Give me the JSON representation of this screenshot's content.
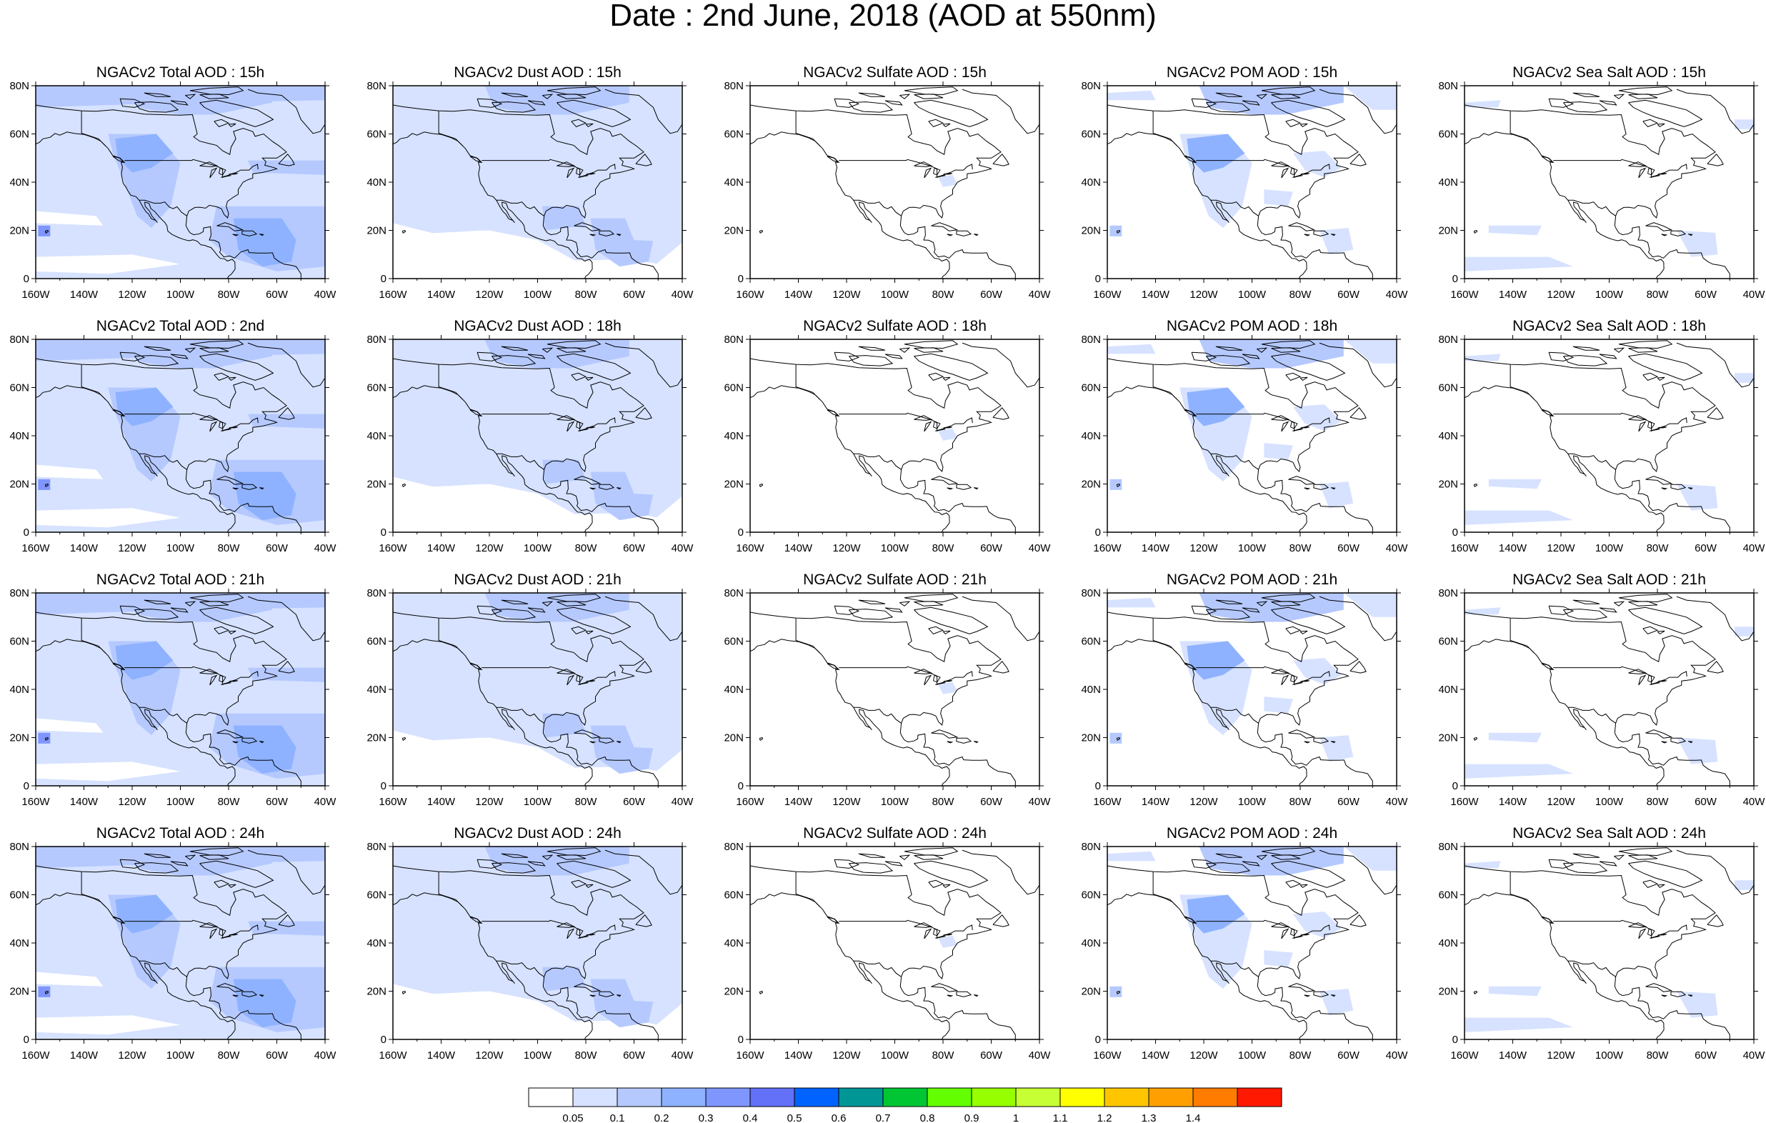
{
  "title": "Date : 2nd June, 2018 (AOD at 550nm)",
  "lat_labels": [
    "80N",
    "60N",
    "40N",
    "20N",
    "0"
  ],
  "lon_labels": [
    "160W",
    "140W",
    "120W",
    "100W",
    "80W",
    "60W",
    "40W"
  ],
  "colorbar": {
    "colors": [
      "#ffffff",
      "#d6e2ff",
      "#b5c9ff",
      "#8eb2ff",
      "#7f96ff",
      "#6370f8",
      "#0063ff",
      "#009696",
      "#00c633",
      "#63ff00",
      "#96ff00",
      "#c6ff33",
      "#ffff00",
      "#ffc600",
      "#ffa000",
      "#ff7c00",
      "#ff1900"
    ],
    "labels": [
      "0.05",
      "0.1",
      "0.2",
      "0.3",
      "0.4",
      "0.5",
      "0.6",
      "0.7",
      "0.8",
      "0.9",
      "1",
      "1.1",
      "1.2",
      "1.3",
      "1.4"
    ]
  },
  "rows": [
    {
      "panels": [
        {
          "title": "NGACv2 Total AOD : 15h",
          "kind": "total"
        },
        {
          "title": "NGACv2 Dust AOD : 15h",
          "kind": "dust"
        },
        {
          "title": "NGACv2 Sulfate AOD : 15h",
          "kind": "sulfate"
        },
        {
          "title": "NGACv2 POM AOD : 15h",
          "kind": "pom"
        },
        {
          "title": "NGACv2 Sea Salt AOD : 15h",
          "kind": "seasalt"
        }
      ]
    },
    {
      "panels": [
        {
          "title": "NGACv2 Total AOD : 2nd",
          "kind": "total"
        },
        {
          "title": "NGACv2 Dust AOD : 18h",
          "kind": "dust"
        },
        {
          "title": "NGACv2 Sulfate AOD : 18h",
          "kind": "sulfate"
        },
        {
          "title": "NGACv2 POM AOD : 18h",
          "kind": "pom"
        },
        {
          "title": "NGACv2 Sea Salt AOD : 18h",
          "kind": "seasalt"
        }
      ]
    },
    {
      "panels": [
        {
          "title": "NGACv2 Total AOD : 21h",
          "kind": "total"
        },
        {
          "title": "NGACv2 Dust AOD : 21h",
          "kind": "dust"
        },
        {
          "title": "NGACv2 Sulfate AOD : 21h",
          "kind": "sulfate"
        },
        {
          "title": "NGACv2 POM AOD : 21h",
          "kind": "pom"
        },
        {
          "title": "NGACv2 Sea Salt AOD : 21h",
          "kind": "seasalt"
        }
      ]
    },
    {
      "panels": [
        {
          "title": "NGACv2 Total AOD : 24h",
          "kind": "total"
        },
        {
          "title": "NGACv2 Dust AOD : 24h",
          "kind": "dust"
        },
        {
          "title": "NGACv2 Sulfate AOD : 24h",
          "kind": "sulfate"
        },
        {
          "title": "NGACv2 POM AOD : 24h",
          "kind": "pom"
        },
        {
          "title": "NGACv2 Sea Salt  AOD : 24h",
          "kind": "seasalt"
        }
      ]
    }
  ]
}
